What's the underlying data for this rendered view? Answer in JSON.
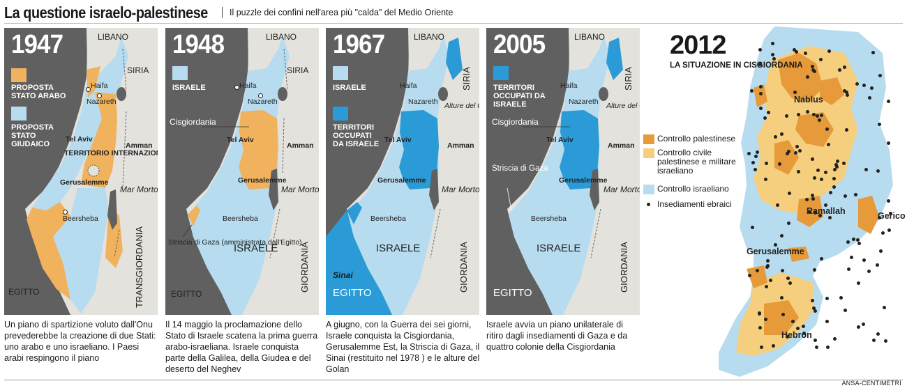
{
  "header": {
    "title": "La questione israelo-palestinese",
    "subtitle": "Il puzzle dei confini nell'area più \"calda\" del Medio Oriente"
  },
  "colors": {
    "arab": "#f0b25c",
    "israel": "#b7dcef",
    "occupied": "#2a9bd6",
    "palestinian_control": "#e69a3a",
    "civil_control": "#f5cf7e",
    "israeli_control": "#b7dcef",
    "sea": "#606060",
    "terrain": "#e4e2dd"
  },
  "panels": [
    {
      "year": "1947",
      "legend": [
        {
          "label": "PROPOSTA STATO ARABO",
          "color": "#f0b25c"
        },
        {
          "label": "PROPOSTA STATO GIUDAICO",
          "color": "#b7dcef"
        }
      ],
      "labels": {
        "libano": "LIBANO",
        "siria": "SIRIA",
        "haifa": "Haifa",
        "nazareth": "Nazareth",
        "telaviv": "Tel Aviv",
        "internazionale": "TERRITORIO INTERNAZIONALE",
        "gerusalemme": "Gerusalemme",
        "amman": "Amman",
        "marmorto": "Mar Morto",
        "beersheba": "Beersheba",
        "egitto": "EGITTO",
        "transgiordania": "TRANSGIORDANIA"
      },
      "caption": "Un piano di spartizione voluto dall'Onu prevederebbe la creazione di due Stati: uno arabo e uno israeliano. I Paesi arabi respingono il piano"
    },
    {
      "year": "1948",
      "legend": [
        {
          "label": "ISRAELE",
          "color": "#b7dcef"
        }
      ],
      "labels": {
        "libano": "LIBANO",
        "siria": "SIRIA",
        "haifa": "Haifa",
        "nazareth": "Nazareth",
        "cisgiordania": "Cisgiordania",
        "telaviv": "Tel Aviv",
        "amman": "Amman",
        "gerusalemme": "Gerusalemme",
        "marmorto": "Mar Morto",
        "beersheba": "Beersheba",
        "israele": "ISRAELE",
        "gaza": "Striscia di Gaza (amministrata dall'Egitto)",
        "egitto": "EGITTO",
        "giordania": "GIORDANIA"
      },
      "caption": "Il 14 maggio la proclamazione dello Stato di Israele scatena la prima guerra arabo-israeliana. Israele conquista parte della Galilea, della Giudea e del deserto del Neghev"
    },
    {
      "year": "1967",
      "legend": [
        {
          "label": "ISRAELE",
          "color": "#b7dcef"
        },
        {
          "label": "TERRITORI OCCUPATI DA ISRAELE",
          "color": "#2a9bd6"
        }
      ],
      "labels": {
        "libano": "LIBANO",
        "siria": "SIRIA",
        "haifa": "Haifa",
        "nazareth": "Nazareth",
        "golan": "Alture del Golan",
        "telaviv": "Tel Aviv",
        "amman": "Amman",
        "gerusalemme": "Gerusalemme",
        "marmorto": "Mar Morto",
        "beersheba": "Beersheba",
        "israele": "ISRAELE",
        "sinai": "Sinai",
        "egitto": "EGITTO",
        "giordania": "GIORDANIA"
      },
      "caption": "A giugno, con la Guerra dei sei giorni, Israele conquista la Cisgiordania, Gerusalemme Est, la Striscia di Gaza, il Sinai (restituito nel 1978 ) e le alture del Golan"
    },
    {
      "year": "2005",
      "legend": [
        {
          "label": "TERRITORI OCCUPATI DA ISRAELE",
          "color": "#2a9bd6"
        }
      ],
      "labels": {
        "libano": "LIBANO",
        "siria": "SIRIA",
        "haifa": "Haifa",
        "nazareth": "Nazareth",
        "golan": "Alture del Golan",
        "cisgiordania": "Cisgiordania",
        "telaviv": "Tel Aviv",
        "amman": "Amman",
        "gaza": "Striscia di Gaza",
        "gerusalemme": "Gerusalemme",
        "marmorto": "Mar Morto",
        "beersheba": "Beersheba",
        "israele": "ISRAELE",
        "egitto": "EGITTO",
        "giordania": "GIORDANIA"
      },
      "caption": "Israele avvia un piano unilaterale di ritiro dagli insediamenti di Gaza e da quattro colonie della Cisgiordania"
    }
  ],
  "map2012": {
    "year": "2012",
    "subtitle": "LA SITUAZIONE IN CISGIORDANIA",
    "legend": [
      {
        "label": "Controllo palestinese",
        "color": "#e69a3a"
      },
      {
        "label": "Controllo civile palestinese e militare israeliano",
        "color": "#f5cf7e"
      },
      {
        "label": "Controllo israeliano",
        "color": "#b7dcef"
      },
      {
        "label": "Insediamenti ebraici",
        "color": "#222222"
      }
    ],
    "cities": {
      "nablus": "Nablus",
      "ramallah": "Ramallah",
      "gerico": "Gerico",
      "gerusalemme": "Gerusalemme",
      "hebron": "Hebron"
    }
  },
  "credit": "ANSA-CENTIMETRI"
}
